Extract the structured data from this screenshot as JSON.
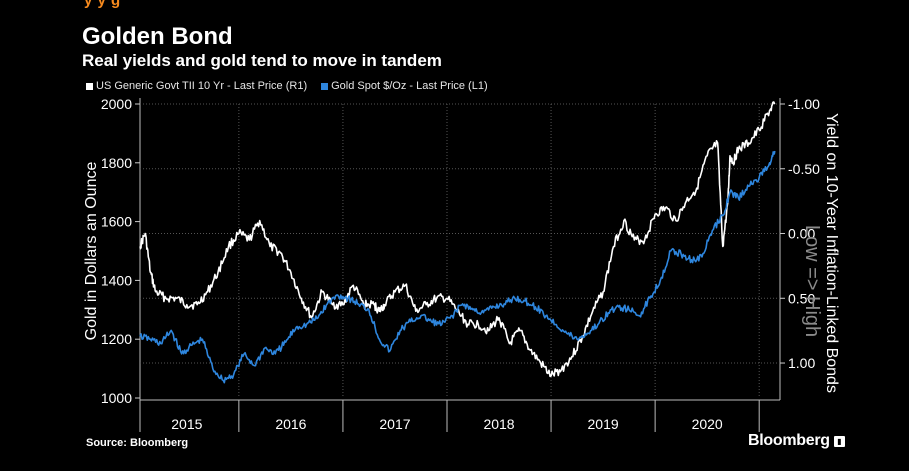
{
  "header": {
    "top_strip_text": "y    y g",
    "title": "Golden Bond",
    "subtitle": "Real yields and gold tend to move in tandem"
  },
  "legend": [
    {
      "label": "US Generic Govt TII 10 Yr - Last Price (R1)",
      "color": "#ffffff"
    },
    {
      "label": "Gold Spot $/Oz - Last Price (L1)",
      "color": "#2e86de"
    }
  ],
  "footer": {
    "source": "Source: Bloomberg",
    "brand": "Bloomberg",
    "brand_icon": "chart-icon"
  },
  "chart_data": {
    "type": "line",
    "title": "Golden Bond",
    "subtitle": "Real yields and gold tend to move in tandem",
    "xlabel": "",
    "ylabel_left": "Gold in Dollars an Ounce",
    "ylabel_right": "Yield on 10-Year Inflation-Linked Bonds",
    "right_axis_note": "Low => High",
    "x_range": [
      2014.55,
      2020.7
    ],
    "year_labels": [
      "2015",
      "2016",
      "2017",
      "2018",
      "2019",
      "2020"
    ],
    "year_label_positions": [
      2015.0,
      2016.0,
      2017.0,
      2018.0,
      2019.0,
      2020.0
    ],
    "left_axis": {
      "min": 1000,
      "max": 2000,
      "ticks": [
        1000,
        1200,
        1400,
        1600,
        1800,
        2000
      ]
    },
    "right_axis": {
      "min": 1.27,
      "max": -1.0,
      "inverted": true,
      "ticks": [
        -1.0,
        -0.5,
        0.0,
        0.5,
        1.0
      ],
      "tick_labels": [
        "-1.00",
        "-0.50",
        "0.00",
        "0.50",
        "1.00"
      ]
    },
    "grid": true,
    "series": [
      {
        "name": "US Generic Govt TII 10 Yr - Last Price (R1)",
        "axis": "right",
        "color": "#ffffff",
        "x": [
          2014.55,
          2014.6,
          2014.65,
          2014.7,
          2014.8,
          2014.9,
          2015.0,
          2015.1,
          2015.2,
          2015.3,
          2015.4,
          2015.5,
          2015.6,
          2015.7,
          2015.8,
          2015.9,
          2016.0,
          2016.1,
          2016.2,
          2016.3,
          2016.4,
          2016.5,
          2016.6,
          2016.7,
          2016.8,
          2016.85,
          2016.9,
          2017.0,
          2017.1,
          2017.2,
          2017.3,
          2017.4,
          2017.5,
          2017.6,
          2017.7,
          2017.8,
          2017.9,
          2018.0,
          2018.1,
          2018.2,
          2018.3,
          2018.4,
          2018.5,
          2018.6,
          2018.7,
          2018.8,
          2018.9,
          2019.0,
          2019.1,
          2019.2,
          2019.3,
          2019.4,
          2019.5,
          2019.6,
          2019.7,
          2019.8,
          2019.9,
          2020.0,
          2020.1,
          2020.15,
          2020.2,
          2020.22,
          2020.25,
          2020.3,
          2020.4,
          2020.5,
          2020.6,
          2020.65
        ],
        "values": [
          0.1,
          0.0,
          0.3,
          0.45,
          0.5,
          0.5,
          0.55,
          0.55,
          0.45,
          0.3,
          0.1,
          0.0,
          0.05,
          -0.1,
          0.1,
          0.15,
          0.3,
          0.5,
          0.65,
          0.45,
          0.55,
          0.55,
          0.4,
          0.55,
          0.55,
          0.6,
          0.55,
          0.45,
          0.4,
          0.6,
          0.55,
          0.5,
          0.5,
          0.6,
          0.7,
          0.7,
          0.75,
          0.65,
          0.85,
          0.75,
          0.9,
          1.0,
          1.1,
          1.05,
          0.95,
          0.8,
          0.6,
          0.45,
          0.1,
          -0.1,
          0.05,
          0.05,
          -0.15,
          -0.2,
          -0.1,
          -0.25,
          -0.35,
          -0.6,
          -0.7,
          0.1,
          -0.25,
          -0.6,
          -0.55,
          -0.65,
          -0.7,
          -0.8,
          -0.95,
          -1.0
        ]
      },
      {
        "name": "Gold Spot $/Oz - Last Price (L1)",
        "axis": "left",
        "color": "#2e86de",
        "x": [
          2014.55,
          2014.65,
          2014.75,
          2014.85,
          2014.95,
          2015.05,
          2015.15,
          2015.25,
          2015.35,
          2015.45,
          2015.55,
          2015.65,
          2015.75,
          2015.85,
          2015.95,
          2016.05,
          2016.15,
          2016.25,
          2016.35,
          2016.45,
          2016.55,
          2016.65,
          2016.75,
          2016.85,
          2016.95,
          2017.05,
          2017.15,
          2017.25,
          2017.35,
          2017.45,
          2017.55,
          2017.65,
          2017.75,
          2017.85,
          2017.95,
          2018.05,
          2018.15,
          2018.25,
          2018.35,
          2018.45,
          2018.55,
          2018.65,
          2018.75,
          2018.85,
          2018.95,
          2019.05,
          2019.15,
          2019.25,
          2019.35,
          2019.45,
          2019.55,
          2019.65,
          2019.75,
          2019.85,
          2019.95,
          2020.05,
          2020.15,
          2020.22,
          2020.3,
          2020.4,
          2020.5,
          2020.6,
          2020.65
        ],
        "values": [
          1210,
          1200,
          1185,
          1230,
          1150,
          1180,
          1200,
          1100,
          1060,
          1080,
          1150,
          1110,
          1170,
          1150,
          1190,
          1240,
          1250,
          1270,
          1320,
          1350,
          1340,
          1320,
          1300,
          1200,
          1160,
          1230,
          1260,
          1280,
          1260,
          1250,
          1280,
          1320,
          1300,
          1290,
          1310,
          1320,
          1340,
          1330,
          1310,
          1280,
          1250,
          1220,
          1200,
          1220,
          1250,
          1290,
          1310,
          1300,
          1280,
          1340,
          1400,
          1500,
          1490,
          1470,
          1480,
          1570,
          1620,
          1700,
          1680,
          1720,
          1750,
          1800,
          1840
        ]
      }
    ]
  }
}
